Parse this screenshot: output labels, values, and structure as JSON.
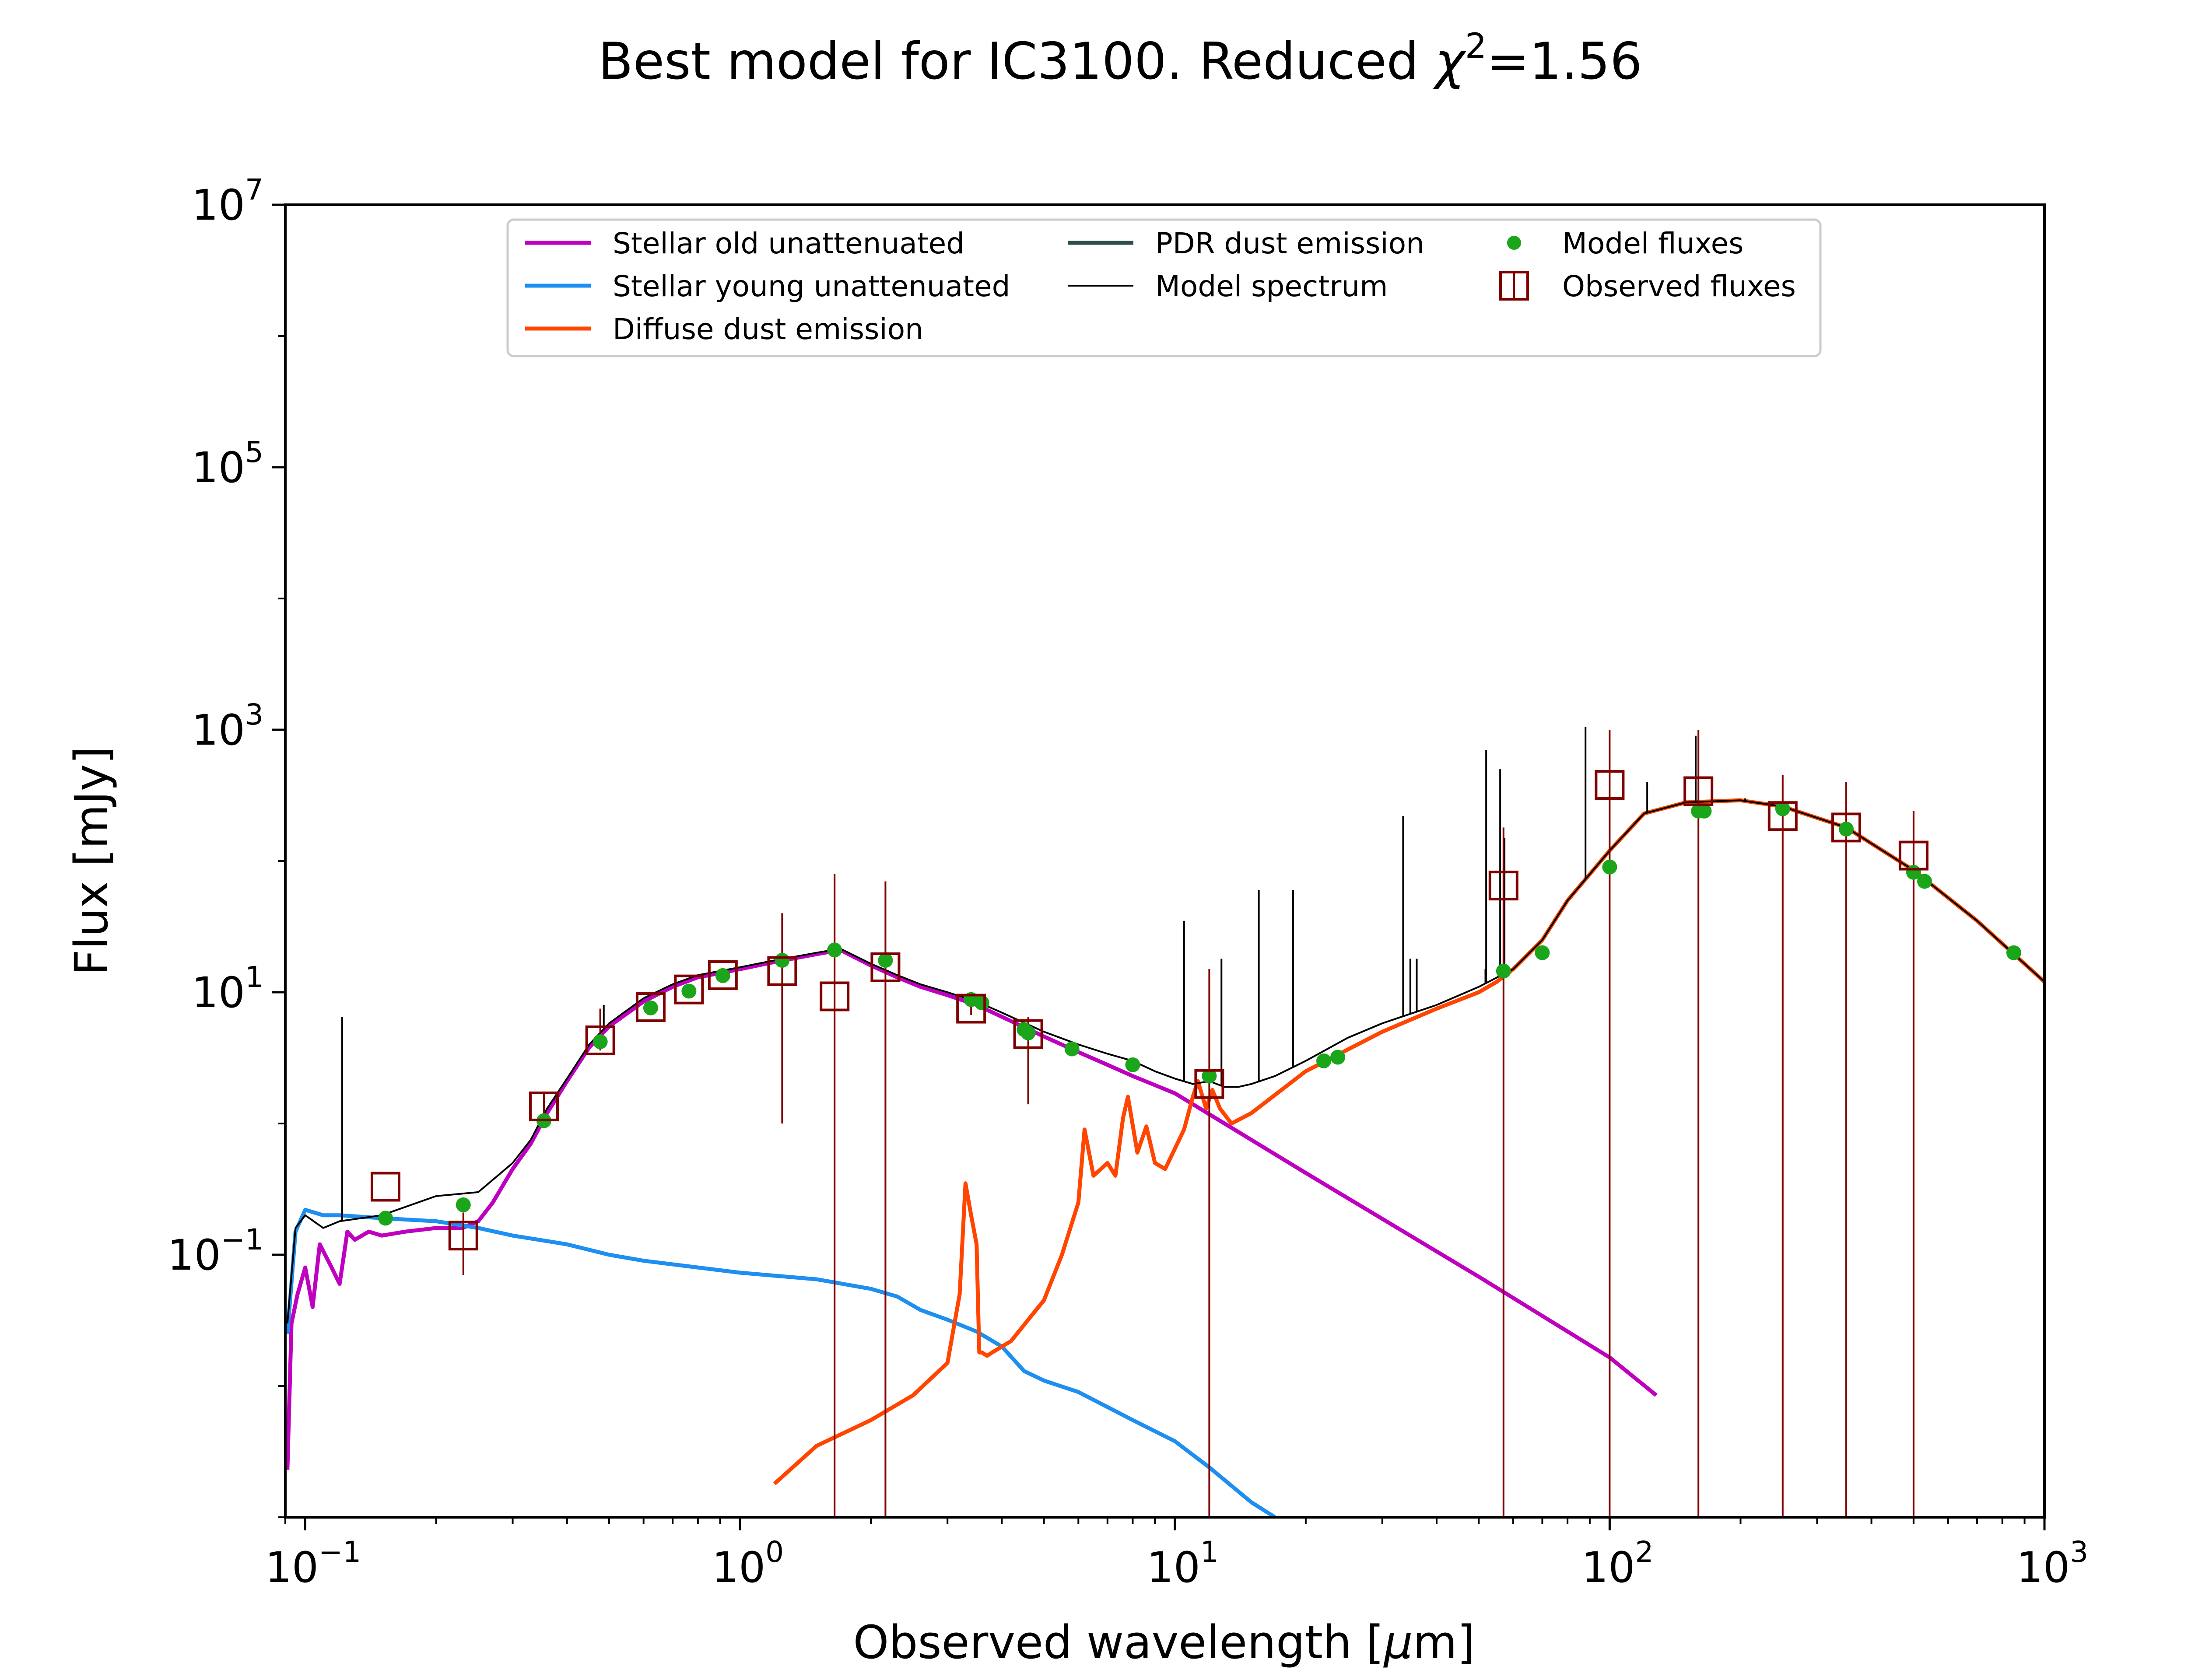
{
  "chart_data": {
    "type": "line",
    "title_prefix": "Best model for IC3100. Reduced ",
    "title_chi": "χ",
    "title_sup": "2",
    "title_suffix": "=1.56",
    "xlabel_prefix": "Observed wavelength [",
    "xlabel_mu": "μ",
    "xlabel_suffix": "m]",
    "ylabel": "Flux [mJy]",
    "xscale": "log",
    "yscale": "log",
    "xlim": [
      0.09,
      1000
    ],
    "ylim": [
      0.001,
      10000000
    ],
    "grid": false,
    "legend_position": "top-center",
    "x_ticks": [
      {
        "value": 0.1,
        "base": "10",
        "exp": "−1"
      },
      {
        "value": 1,
        "base": "10",
        "exp": "0"
      },
      {
        "value": 10,
        "base": "10",
        "exp": "1"
      },
      {
        "value": 100,
        "base": "10",
        "exp": "2"
      },
      {
        "value": 1000,
        "base": "10",
        "exp": "3"
      }
    ],
    "y_ticks": [
      {
        "value": 0.1,
        "base": "10",
        "exp": "−1"
      },
      {
        "value": 10,
        "base": "10",
        "exp": "1"
      },
      {
        "value": 1000,
        "base": "10",
        "exp": "3"
      },
      {
        "value": 100000,
        "base": "10",
        "exp": "5"
      },
      {
        "value": 10000000,
        "base": "10",
        "exp": "7"
      }
    ],
    "series": [
      {
        "name": "Stellar old unattenuated",
        "color": "#bf00bf",
        "x": [
          0.091,
          0.093,
          0.096,
          0.1,
          0.104,
          0.108,
          0.115,
          0.12,
          0.125,
          0.13,
          0.14,
          0.15,
          0.17,
          0.2,
          0.23,
          0.25,
          0.27,
          0.3,
          0.33,
          0.36,
          0.4,
          0.45,
          0.5,
          0.6,
          0.7,
          0.8,
          1.0,
          1.2,
          1.5,
          1.7,
          2.0,
          2.3,
          2.6,
          3.0,
          3.5,
          4.0,
          5.0,
          6.0,
          7.0,
          8.0,
          10,
          20,
          50,
          100,
          128
        ],
        "y": [
          0.0023,
          0.03,
          0.05,
          0.08,
          0.04,
          0.12,
          0.08,
          0.06,
          0.15,
          0.13,
          0.15,
          0.14,
          0.15,
          0.16,
          0.16,
          0.18,
          0.25,
          0.45,
          0.7,
          1.2,
          2.1,
          3.8,
          5.5,
          8.5,
          11,
          13,
          15,
          17,
          19.5,
          21,
          16,
          13,
          11,
          9.5,
          8,
          6.5,
          4.6,
          3.5,
          2.8,
          2.3,
          1.7,
          0.42,
          0.068,
          0.0165,
          0.0085
        ]
      },
      {
        "name": "Stellar young unattenuated",
        "color": "#1e8ff0",
        "x": [
          0.091,
          0.095,
          0.1,
          0.11,
          0.12,
          0.15,
          0.2,
          0.25,
          0.3,
          0.4,
          0.5,
          0.6,
          0.8,
          1.0,
          1.5,
          2.0,
          2.3,
          2.6,
          3.0,
          3.5,
          4.0,
          4.5,
          5.0,
          6.0,
          8.0,
          10,
          12,
          15,
          17
        ],
        "y": [
          0.025,
          0.15,
          0.22,
          0.2,
          0.2,
          0.19,
          0.18,
          0.16,
          0.14,
          0.12,
          0.1,
          0.09,
          0.08,
          0.073,
          0.065,
          0.055,
          0.048,
          0.038,
          0.032,
          0.026,
          0.02,
          0.013,
          0.011,
          0.009,
          0.0055,
          0.0038,
          0.0024,
          0.0013,
          0.001
        ]
      },
      {
        "name": "Diffuse dust emission",
        "color": "#ff4500",
        "x": [
          1.2,
          1.5,
          2.0,
          2.5,
          3.0,
          3.2,
          3.3,
          3.4,
          3.5,
          3.55,
          3.6,
          3.7,
          3.8,
          4.2,
          5.0,
          5.5,
          6.0,
          6.2,
          6.5,
          7.0,
          7.3,
          7.6,
          7.8,
          8.2,
          8.6,
          9.0,
          9.5,
          10.5,
          11.0,
          11.3,
          11.8,
          12.2,
          12.7,
          13.5,
          15,
          20,
          30,
          40,
          50,
          55,
          60,
          70,
          80,
          100,
          120,
          150,
          200,
          250,
          350,
          500,
          700,
          1000
        ],
        "y": [
          0.0018,
          0.0035,
          0.0055,
          0.0085,
          0.015,
          0.05,
          0.35,
          0.2,
          0.12,
          0.018,
          0.018,
          0.017,
          0.018,
          0.022,
          0.045,
          0.1,
          0.25,
          0.9,
          0.4,
          0.5,
          0.4,
          1.1,
          1.6,
          0.6,
          0.95,
          0.5,
          0.45,
          0.9,
          1.6,
          2.1,
          1.3,
          1.8,
          1.3,
          1.0,
          1.2,
          2.5,
          5.0,
          7.5,
          10,
          12,
          15,
          25,
          50,
          120,
          230,
          280,
          290,
          260,
          180,
          85,
          35,
          12
        ]
      },
      {
        "name": "PDR dust emission",
        "color": "#2f4f4f",
        "x": [],
        "y": []
      },
      {
        "name": "Model spectrum",
        "color": "#000000",
        "x": [
          0.091,
          0.095,
          0.1,
          0.11,
          0.12,
          0.15,
          0.2,
          0.25,
          0.3,
          0.33,
          0.36,
          0.4,
          0.45,
          0.5,
          0.6,
          0.7,
          0.8,
          1.0,
          1.2,
          1.5,
          1.7,
          2.0,
          2.3,
          2.6,
          3.0,
          3.5,
          4.0,
          5.0,
          6.0,
          7.0,
          8.0,
          9.0,
          10,
          11,
          12,
          13,
          14,
          15,
          17,
          20,
          25,
          30,
          40,
          50,
          60,
          70,
          80,
          100,
          120,
          150,
          200,
          250,
          350,
          500,
          700,
          1000
        ],
        "y": [
          0.03,
          0.16,
          0.2,
          0.16,
          0.18,
          0.2,
          0.28,
          0.3,
          0.5,
          0.75,
          1.3,
          2.2,
          4.0,
          5.8,
          9.0,
          11.5,
          13.5,
          15.5,
          17.5,
          20,
          21.5,
          16.5,
          13.5,
          11.5,
          10,
          8.5,
          7,
          5.0,
          4.0,
          3.4,
          3.0,
          2.5,
          2.2,
          2.0,
          2.1,
          1.9,
          1.9,
          2.0,
          2.3,
          3.0,
          4.5,
          5.8,
          8.0,
          11,
          15,
          25,
          50,
          120,
          230,
          280,
          290,
          260,
          180,
          85,
          35,
          12
        ]
      },
      {
        "name": "Model fluxes",
        "color": "#1aa51a",
        "x": [
          0.153,
          0.231,
          0.354,
          0.477,
          0.623,
          0.763,
          0.913,
          1.25,
          1.65,
          2.16,
          3.4,
          3.6,
          4.5,
          4.6,
          5.8,
          8.0,
          12,
          22,
          23.7,
          57,
          70,
          100,
          160,
          165,
          250,
          350,
          500,
          530,
          850
        ],
        "y": [
          0.19,
          0.24,
          1.05,
          4.2,
          7.6,
          10.2,
          13.4,
          17.5,
          21,
          17.5,
          8.8,
          8.3,
          5.2,
          4.9,
          3.7,
          2.8,
          2.3,
          3.0,
          3.2,
          14.5,
          20,
          90,
          240,
          240,
          250,
          175,
          82,
          70,
          20
        ]
      },
      {
        "name": "Observed fluxes",
        "color": "#800000",
        "x": [
          0.153,
          0.231,
          0.354,
          0.477,
          0.623,
          0.763,
          0.913,
          1.25,
          1.65,
          2.16,
          3.4,
          4.6,
          12,
          57,
          100,
          160,
          250,
          350,
          500
        ],
        "y": [
          0.33,
          0.14,
          1.35,
          4.3,
          7.7,
          10.5,
          13.5,
          14.5,
          9.3,
          15.5,
          7.5,
          4.8,
          2.0,
          65,
          380,
          340,
          220,
          180,
          110
        ],
        "err_low": [
          0.33,
          0.07,
          0.95,
          3.6,
          6.9,
          9.7,
          12.7,
          1.0,
          0.001,
          0.001,
          6.7,
          1.4,
          0.001,
          0.001,
          0.001,
          0.001,
          0.001,
          0.001,
          0.001
        ],
        "err_high": [
          0.33,
          0.21,
          1.75,
          7.5,
          8.5,
          11.3,
          14.3,
          40,
          80,
          70,
          8.5,
          6.5,
          15,
          180,
          1000,
          1000,
          450,
          400,
          240
        ]
      }
    ],
    "emission_lines": [
      {
        "x": 0.1216,
        "top": 6.5
      },
      {
        "x": 0.373,
        "top": 1.5
      },
      {
        "x": 0.486,
        "top": 8.0
      },
      {
        "x": 0.657,
        "top": 10.5
      },
      {
        "x": 10.5,
        "top": 35
      },
      {
        "x": 12.8,
        "top": 18
      },
      {
        "x": 15.6,
        "top": 60
      },
      {
        "x": 18.7,
        "top": 60
      },
      {
        "x": 33.5,
        "top": 220
      },
      {
        "x": 34.8,
        "top": 18
      },
      {
        "x": 36.0,
        "top": 18
      },
      {
        "x": 51.8,
        "top": 15
      },
      {
        "x": 52.0,
        "top": 700
      },
      {
        "x": 56.0,
        "top": 500
      },
      {
        "x": 57.3,
        "top": 150
      },
      {
        "x": 88.0,
        "top": 1050
      },
      {
        "x": 122.0,
        "top": 400
      },
      {
        "x": 157.7,
        "top": 900
      },
      {
        "x": 205.0,
        "top": 300
      }
    ]
  }
}
